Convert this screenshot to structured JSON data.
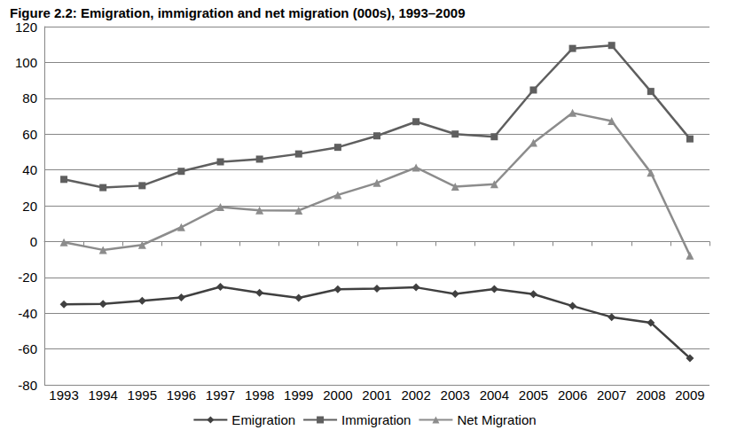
{
  "chart_data": {
    "type": "line",
    "title": "Figure 2.2: Emigration, immigration and net migration (000s), 1993–2009",
    "categories": [
      "1993",
      "1994",
      "1995",
      "1996",
      "1997",
      "1998",
      "1999",
      "2000",
      "2001",
      "2002",
      "2003",
      "2004",
      "2005",
      "2006",
      "2007",
      "2008",
      "2009"
    ],
    "series": [
      {
        "name": "Emigration",
        "color": "#404040",
        "marker": "diamond",
        "values": [
          -35.1,
          -34.8,
          -33.1,
          -31.2,
          -25.3,
          -28.6,
          -31.5,
          -26.7,
          -26.3,
          -25.6,
          -29.3,
          -26.5,
          -29.4,
          -36.0,
          -42.2,
          -45.3,
          -65.1
        ]
      },
      {
        "name": "Immigration",
        "color": "#5f5f5f",
        "marker": "square",
        "values": [
          34.7,
          30.1,
          31.2,
          39.2,
          44.5,
          46.0,
          48.9,
          52.6,
          59.0,
          66.9,
          60.0,
          58.5,
          84.6,
          107.8,
          109.5,
          83.8,
          57.3
        ]
      },
      {
        "name": "Net Migration",
        "color": "#8c8c8c",
        "marker": "triangle",
        "values": [
          -0.4,
          -4.7,
          -1.9,
          8.0,
          19.2,
          17.4,
          17.3,
          26.0,
          32.7,
          41.3,
          30.7,
          32.0,
          55.1,
          71.8,
          67.3,
          38.5,
          -7.8
        ]
      }
    ],
    "ylim": [
      -80,
      120
    ],
    "yticks": [
      -80,
      -60,
      -40,
      -20,
      0,
      20,
      40,
      60,
      80,
      100,
      120
    ],
    "grid": true,
    "legend": "bottom"
  }
}
